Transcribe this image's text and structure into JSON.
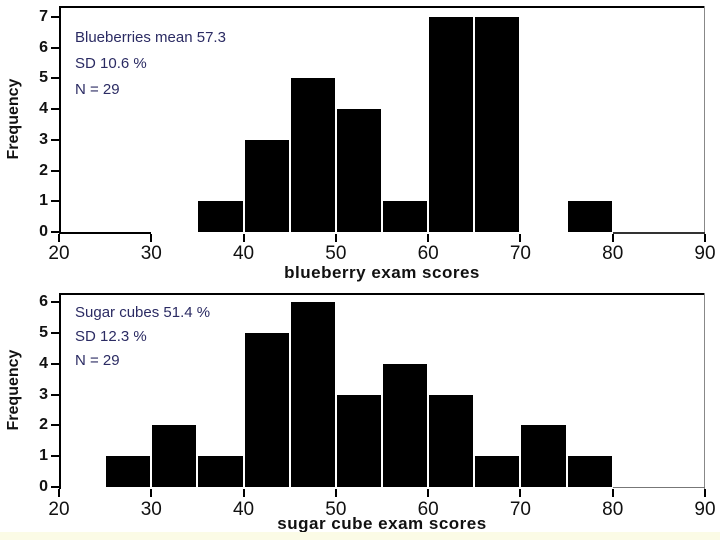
{
  "page": {
    "background": "#ffffff",
    "footer_strip_color": "#fbfbe6"
  },
  "chart_data": [
    {
      "type": "bar",
      "subtype": "histogram",
      "name": "blueberry-exam-scores",
      "title": "",
      "xlabel": "blueberry exam scores",
      "ylabel": "Frequency",
      "annotation_lines": [
        "Blueberries mean 57.3",
        "SD 10.6 %",
        "N = 29"
      ],
      "annotation_color": "#2b2b63",
      "bar_color": "#000000",
      "mean_shown": "57.3",
      "sd_shown": "10.6 %",
      "n_shown": 29,
      "bin_width": 5,
      "bins": [
        [
          35,
          1
        ],
        [
          40,
          3
        ],
        [
          45,
          5
        ],
        [
          50,
          4
        ],
        [
          55,
          1
        ],
        [
          60,
          7
        ],
        [
          65,
          7
        ],
        [
          70,
          0
        ],
        [
          75,
          1
        ]
      ],
      "xlim": [
        20,
        90
      ],
      "ylim": [
        0,
        7
      ],
      "xticks": [
        20,
        30,
        40,
        50,
        60,
        70,
        80,
        90
      ],
      "yticks": [
        0,
        1,
        2,
        3,
        4,
        5,
        6,
        7
      ],
      "grid": false,
      "legend": false
    },
    {
      "type": "bar",
      "subtype": "histogram",
      "name": "sugar-cube-exam-scores",
      "title": "",
      "xlabel": "sugar cube exam scores",
      "ylabel": "Frequency",
      "annotation_lines": [
        "Sugar cubes 51.4 %",
        "SD 12.3 %",
        "N = 29"
      ],
      "annotation_color": "#2b2b63",
      "bar_color": "#000000",
      "mean_shown": "51.4 %",
      "sd_shown": "12.3 %",
      "n_shown": 29,
      "bin_width": 5,
      "bins": [
        [
          25,
          1
        ],
        [
          30,
          2
        ],
        [
          35,
          1
        ],
        [
          40,
          5
        ],
        [
          45,
          6
        ],
        [
          50,
          3
        ],
        [
          55,
          4
        ],
        [
          60,
          3
        ],
        [
          65,
          1
        ],
        [
          70,
          2
        ],
        [
          75,
          1
        ]
      ],
      "xlim": [
        20,
        90
      ],
      "ylim": [
        0,
        6
      ],
      "xticks": [
        20,
        30,
        40,
        50,
        60,
        70,
        80,
        90
      ],
      "yticks": [
        0,
        1,
        2,
        3,
        4,
        5,
        6
      ],
      "grid": false,
      "legend": false
    }
  ]
}
